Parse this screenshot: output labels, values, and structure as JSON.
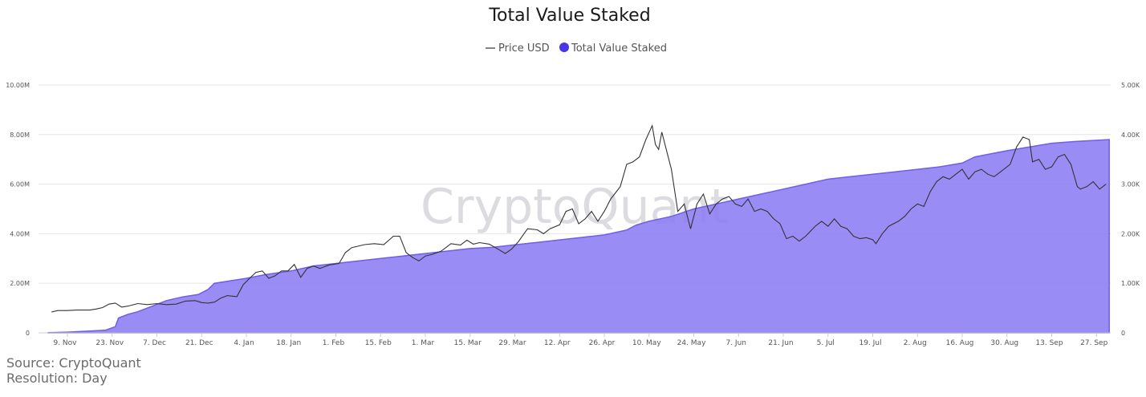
{
  "colors": {
    "area": "#8b7cf2",
    "area_stroke": "#6f5ee8",
    "price_line": "#333333",
    "legend_dot": "#4a36e6",
    "grid": "#e6e6e6"
  },
  "watermark": "CryptoQuant",
  "source_line": "Source: CryptoQuant",
  "resolution_line": "Resolution: Day",
  "chart_data": {
    "type": "area",
    "title": "Total Value Staked",
    "legend": {
      "placement": "top-center",
      "items": [
        {
          "name": "Price USD",
          "marker": "line",
          "color": "#333333"
        },
        {
          "name": "Total Value Staked",
          "marker": "dot",
          "color": "#4a36e6"
        }
      ]
    },
    "x_tick_labels": [
      "9. Nov",
      "23. Nov",
      "7. Dec",
      "21. Dec",
      "4. Jan",
      "18. Jan",
      "1. Feb",
      "15. Feb",
      "1. Mar",
      "15. Mar",
      "29. Mar",
      "12. Apr",
      "26. Apr",
      "10. May",
      "24. May",
      "7. Jun",
      "21. Jun",
      "5. Jul",
      "19. Jul",
      "2. Aug",
      "16. Aug",
      "30. Aug",
      "13. Sep",
      "27. Sep"
    ],
    "y_left": {
      "ticks": [
        "0",
        "2.00M",
        "4.00M",
        "6.00M",
        "8.00M",
        "10.00M"
      ],
      "range": [
        0,
        10000000
      ]
    },
    "y_right": {
      "ticks": [
        "0",
        "1.00K",
        "2.00K",
        "3.00K",
        "4.00K",
        "5.00K"
      ],
      "range": [
        0,
        5000
      ]
    },
    "grid": true,
    "series": [
      {
        "name": "Total Value Staked",
        "axis": "left",
        "type": "area",
        "points": [
          [
            "2020-11-03",
            10000
          ],
          [
            "2020-11-09",
            30000
          ],
          [
            "2020-11-16",
            70000
          ],
          [
            "2020-11-21",
            110000
          ],
          [
            "2020-11-24",
            250000
          ],
          [
            "2020-11-25",
            600000
          ],
          [
            "2020-11-28",
            750000
          ],
          [
            "2020-12-01",
            850000
          ],
          [
            "2020-12-05",
            1050000
          ],
          [
            "2020-12-10",
            1300000
          ],
          [
            "2020-12-15",
            1450000
          ],
          [
            "2020-12-20",
            1550000
          ],
          [
            "2020-12-23",
            1750000
          ],
          [
            "2020-12-25",
            2000000
          ],
          [
            "2020-12-30",
            2100000
          ],
          [
            "2021-01-04",
            2200000
          ],
          [
            "2021-01-10",
            2350000
          ],
          [
            "2021-01-18",
            2500000
          ],
          [
            "2021-01-25",
            2700000
          ],
          [
            "2021-02-01",
            2800000
          ],
          [
            "2021-02-08",
            2900000
          ],
          [
            "2021-02-15",
            3000000
          ],
          [
            "2021-02-22",
            3100000
          ],
          [
            "2021-03-01",
            3200000
          ],
          [
            "2021-03-08",
            3300000
          ],
          [
            "2021-03-15",
            3400000
          ],
          [
            "2021-03-22",
            3450000
          ],
          [
            "2021-03-29",
            3550000
          ],
          [
            "2021-04-05",
            3650000
          ],
          [
            "2021-04-12",
            3750000
          ],
          [
            "2021-04-19",
            3850000
          ],
          [
            "2021-04-26",
            3950000
          ],
          [
            "2021-05-03",
            4150000
          ],
          [
            "2021-05-06",
            4350000
          ],
          [
            "2021-05-10",
            4500000
          ],
          [
            "2021-05-17",
            4700000
          ],
          [
            "2021-05-24",
            5000000
          ],
          [
            "2021-05-31",
            5200000
          ],
          [
            "2021-06-07",
            5400000
          ],
          [
            "2021-06-14",
            5600000
          ],
          [
            "2021-06-21",
            5800000
          ],
          [
            "2021-06-28",
            6000000
          ],
          [
            "2021-07-05",
            6200000
          ],
          [
            "2021-07-12",
            6300000
          ],
          [
            "2021-07-19",
            6400000
          ],
          [
            "2021-07-26",
            6500000
          ],
          [
            "2021-08-02",
            6600000
          ],
          [
            "2021-08-09",
            6700000
          ],
          [
            "2021-08-16",
            6850000
          ],
          [
            "2021-08-20",
            7100000
          ],
          [
            "2021-08-30",
            7350000
          ],
          [
            "2021-09-06",
            7500000
          ],
          [
            "2021-09-13",
            7650000
          ],
          [
            "2021-09-20",
            7720000
          ],
          [
            "2021-10-01",
            7800000
          ]
        ]
      },
      {
        "name": "Price USD",
        "axis": "right",
        "type": "line",
        "points": [
          [
            "2020-11-04",
            420
          ],
          [
            "2020-11-06",
            450
          ],
          [
            "2020-11-09",
            450
          ],
          [
            "2020-11-12",
            460
          ],
          [
            "2020-11-16",
            460
          ],
          [
            "2020-11-18",
            480
          ],
          [
            "2020-11-20",
            510
          ],
          [
            "2020-11-22",
            580
          ],
          [
            "2020-11-24",
            600
          ],
          [
            "2020-11-26",
            520
          ],
          [
            "2020-11-28",
            540
          ],
          [
            "2020-12-01",
            590
          ],
          [
            "2020-12-04",
            570
          ],
          [
            "2020-12-07",
            590
          ],
          [
            "2020-12-10",
            570
          ],
          [
            "2020-12-13",
            580
          ],
          [
            "2020-12-16",
            640
          ],
          [
            "2020-12-19",
            650
          ],
          [
            "2020-12-21",
            610
          ],
          [
            "2020-12-23",
            600
          ],
          [
            "2020-12-25",
            620
          ],
          [
            "2020-12-27",
            700
          ],
          [
            "2020-12-29",
            750
          ],
          [
            "2021-01-01",
            730
          ],
          [
            "2021-01-03",
            970
          ],
          [
            "2021-01-05",
            1100
          ],
          [
            "2021-01-07",
            1220
          ],
          [
            "2021-01-09",
            1250
          ],
          [
            "2021-01-11",
            1100
          ],
          [
            "2021-01-13",
            1150
          ],
          [
            "2021-01-15",
            1250
          ],
          [
            "2021-01-17",
            1250
          ],
          [
            "2021-01-19",
            1380
          ],
          [
            "2021-01-21",
            1120
          ],
          [
            "2021-01-23",
            1300
          ],
          [
            "2021-01-25",
            1350
          ],
          [
            "2021-01-27",
            1300
          ],
          [
            "2021-01-30",
            1370
          ],
          [
            "2021-02-02",
            1400
          ],
          [
            "2021-02-04",
            1620
          ],
          [
            "2021-02-06",
            1720
          ],
          [
            "2021-02-08",
            1750
          ],
          [
            "2021-02-10",
            1780
          ],
          [
            "2021-02-13",
            1800
          ],
          [
            "2021-02-16",
            1780
          ],
          [
            "2021-02-19",
            1950
          ],
          [
            "2021-02-21",
            1950
          ],
          [
            "2021-02-23",
            1620
          ],
          [
            "2021-02-25",
            1520
          ],
          [
            "2021-02-27",
            1450
          ],
          [
            "2021-03-01",
            1550
          ],
          [
            "2021-03-03",
            1580
          ],
          [
            "2021-03-06",
            1650
          ],
          [
            "2021-03-09",
            1800
          ],
          [
            "2021-03-12",
            1770
          ],
          [
            "2021-03-14",
            1870
          ],
          [
            "2021-03-16",
            1790
          ],
          [
            "2021-03-18",
            1820
          ],
          [
            "2021-03-21",
            1790
          ],
          [
            "2021-03-24",
            1680
          ],
          [
            "2021-03-26",
            1600
          ],
          [
            "2021-03-28",
            1690
          ],
          [
            "2021-03-30",
            1830
          ],
          [
            "2021-04-02",
            2100
          ],
          [
            "2021-04-05",
            2080
          ],
          [
            "2021-04-07",
            2000
          ],
          [
            "2021-04-09",
            2100
          ],
          [
            "2021-04-12",
            2180
          ],
          [
            "2021-04-14",
            2450
          ],
          [
            "2021-04-16",
            2500
          ],
          [
            "2021-04-18",
            2200
          ],
          [
            "2021-04-20",
            2300
          ],
          [
            "2021-04-22",
            2450
          ],
          [
            "2021-04-24",
            2250
          ],
          [
            "2021-04-26",
            2450
          ],
          [
            "2021-04-28",
            2700
          ],
          [
            "2021-05-01",
            2950
          ],
          [
            "2021-05-03",
            3400
          ],
          [
            "2021-05-05",
            3450
          ],
          [
            "2021-05-07",
            3550
          ],
          [
            "2021-05-09",
            3900
          ],
          [
            "2021-05-11",
            4180
          ],
          [
            "2021-05-12",
            3800
          ],
          [
            "2021-05-13",
            3700
          ],
          [
            "2021-05-14",
            4050
          ],
          [
            "2021-05-16",
            3550
          ],
          [
            "2021-05-17",
            3300
          ],
          [
            "2021-05-19",
            2450
          ],
          [
            "2021-05-21",
            2600
          ],
          [
            "2021-05-23",
            2100
          ],
          [
            "2021-05-25",
            2600
          ],
          [
            "2021-05-27",
            2800
          ],
          [
            "2021-05-29",
            2400
          ],
          [
            "2021-05-31",
            2600
          ],
          [
            "2021-06-02",
            2700
          ],
          [
            "2021-06-04",
            2750
          ],
          [
            "2021-06-06",
            2600
          ],
          [
            "2021-06-08",
            2550
          ],
          [
            "2021-06-10",
            2700
          ],
          [
            "2021-06-12",
            2450
          ],
          [
            "2021-06-14",
            2500
          ],
          [
            "2021-06-16",
            2450
          ],
          [
            "2021-06-18",
            2300
          ],
          [
            "2021-06-20",
            2200
          ],
          [
            "2021-06-22",
            1900
          ],
          [
            "2021-06-24",
            1950
          ],
          [
            "2021-06-26",
            1850
          ],
          [
            "2021-06-28",
            1950
          ],
          [
            "2021-07-01",
            2150
          ],
          [
            "2021-07-03",
            2250
          ],
          [
            "2021-07-05",
            2150
          ],
          [
            "2021-07-07",
            2300
          ],
          [
            "2021-07-09",
            2150
          ],
          [
            "2021-07-11",
            2100
          ],
          [
            "2021-07-13",
            1950
          ],
          [
            "2021-07-15",
            1900
          ],
          [
            "2021-07-17",
            1920
          ],
          [
            "2021-07-19",
            1880
          ],
          [
            "2021-07-20",
            1800
          ],
          [
            "2021-07-22",
            2000
          ],
          [
            "2021-07-24",
            2150
          ],
          [
            "2021-07-27",
            2250
          ],
          [
            "2021-07-29",
            2350
          ],
          [
            "2021-07-31",
            2500
          ],
          [
            "2021-08-02",
            2600
          ],
          [
            "2021-08-04",
            2550
          ],
          [
            "2021-08-06",
            2850
          ],
          [
            "2021-08-08",
            3050
          ],
          [
            "2021-08-10",
            3150
          ],
          [
            "2021-08-12",
            3100
          ],
          [
            "2021-08-14",
            3200
          ],
          [
            "2021-08-16",
            3300
          ],
          [
            "2021-08-18",
            3100
          ],
          [
            "2021-08-20",
            3250
          ],
          [
            "2021-08-22",
            3300
          ],
          [
            "2021-08-24",
            3200
          ],
          [
            "2021-08-26",
            3150
          ],
          [
            "2021-08-28",
            3250
          ],
          [
            "2021-08-31",
            3400
          ],
          [
            "2021-09-02",
            3750
          ],
          [
            "2021-09-04",
            3950
          ],
          [
            "2021-09-06",
            3900
          ],
          [
            "2021-09-07",
            3450
          ],
          [
            "2021-09-09",
            3500
          ],
          [
            "2021-09-11",
            3300
          ],
          [
            "2021-09-13",
            3350
          ],
          [
            "2021-09-15",
            3550
          ],
          [
            "2021-09-17",
            3600
          ],
          [
            "2021-09-19",
            3400
          ],
          [
            "2021-09-21",
            2950
          ],
          [
            "2021-09-22",
            2900
          ],
          [
            "2021-09-24",
            2950
          ],
          [
            "2021-09-26",
            3050
          ],
          [
            "2021-09-28",
            2900
          ],
          [
            "2021-09-30",
            3000
          ]
        ]
      }
    ]
  }
}
